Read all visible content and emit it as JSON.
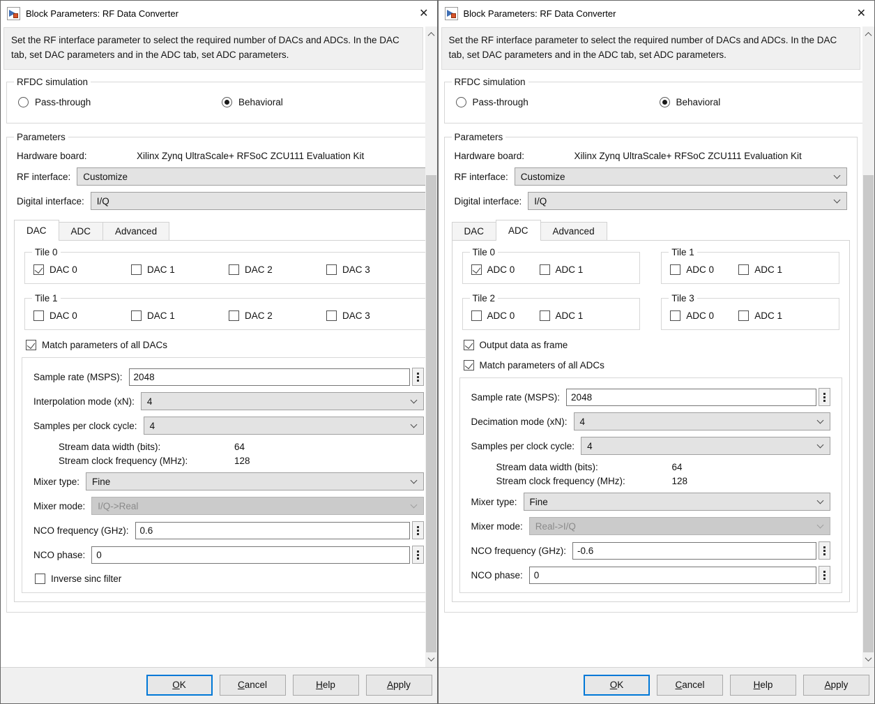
{
  "icons": {
    "close": "✕"
  },
  "window_title": "Block Parameters: RF Data Converter",
  "description": "Set the RF interface parameter to select the required number of DACs and ADCs. In the DAC tab, set DAC parameters and in the ADC tab, set ADC parameters.",
  "rfdc": {
    "legend": "RFDC simulation",
    "options": [
      {
        "label": "Pass-through",
        "selected": false
      },
      {
        "label": "Behavioral",
        "selected": true
      }
    ]
  },
  "parameters": {
    "legend": "Parameters",
    "hardware_board_label": "Hardware board:",
    "hardware_board_value": "Xilinx Zynq UltraScale+ RFSoC ZCU111 Evaluation Kit",
    "rf_interface_label": "RF interface:",
    "rf_interface_value": "Customize",
    "digital_interface_label": "Digital interface:",
    "digital_interface_value": "I/Q"
  },
  "tabs": {
    "dac": "DAC",
    "adc": "ADC",
    "advanced": "Advanced"
  },
  "left": {
    "active_tab": "DAC",
    "tiles": [
      {
        "name": "Tile 0",
        "items": [
          {
            "label": "DAC 0",
            "checked": true
          },
          {
            "label": "DAC 1",
            "checked": false
          },
          {
            "label": "DAC 2",
            "checked": false
          },
          {
            "label": "DAC 3",
            "checked": false
          }
        ]
      },
      {
        "name": "Tile 1",
        "items": [
          {
            "label": "DAC 0",
            "checked": false
          },
          {
            "label": "DAC 1",
            "checked": false
          },
          {
            "label": "DAC 2",
            "checked": false
          },
          {
            "label": "DAC 3",
            "checked": false
          }
        ]
      }
    ],
    "match": {
      "label": "Match parameters of all DACs",
      "checked": true
    },
    "sample_rate": {
      "label": "Sample rate (MSPS):",
      "value": "2048"
    },
    "mode": {
      "label": "Interpolation mode (xN):",
      "value": "4"
    },
    "spc": {
      "label": "Samples per clock cycle:",
      "value": "4"
    },
    "stream_width": {
      "label": "Stream data width (bits):",
      "value": "64"
    },
    "stream_clock": {
      "label": "Stream clock frequency (MHz):",
      "value": "128"
    },
    "mixer_type": {
      "label": "Mixer type:",
      "value": "Fine"
    },
    "mixer_mode": {
      "label": "Mixer mode:",
      "value": "I/Q->Real",
      "disabled": true
    },
    "nco_freq": {
      "label": "NCO frequency (GHz):",
      "value": "0.6"
    },
    "nco_phase": {
      "label": "NCO phase:",
      "value": "0"
    },
    "inverse_sinc": {
      "label": "Inverse sinc filter",
      "checked": false
    }
  },
  "right": {
    "active_tab": "ADC",
    "tiles": [
      {
        "name": "Tile 0",
        "items": [
          {
            "label": "ADC 0",
            "checked": true
          },
          {
            "label": "ADC 1",
            "checked": false
          }
        ]
      },
      {
        "name": "Tile 1",
        "items": [
          {
            "label": "ADC 0",
            "checked": false
          },
          {
            "label": "ADC 1",
            "checked": false
          }
        ]
      },
      {
        "name": "Tile 2",
        "items": [
          {
            "label": "ADC 0",
            "checked": false
          },
          {
            "label": "ADC 1",
            "checked": false
          }
        ]
      },
      {
        "name": "Tile 3",
        "items": [
          {
            "label": "ADC 0",
            "checked": false
          },
          {
            "label": "ADC 1",
            "checked": false
          }
        ]
      }
    ],
    "output_frame": {
      "label": "Output data as frame",
      "checked": true
    },
    "match": {
      "label": "Match parameters of all ADCs",
      "checked": true
    },
    "sample_rate": {
      "label": "Sample rate (MSPS):",
      "value": "2048"
    },
    "mode": {
      "label": "Decimation mode (xN):",
      "value": "4"
    },
    "spc": {
      "label": "Samples per clock cycle:",
      "value": "4"
    },
    "stream_width": {
      "label": "Stream data width (bits):",
      "value": "64"
    },
    "stream_clock": {
      "label": "Stream clock frequency (MHz):",
      "value": "128"
    },
    "mixer_type": {
      "label": "Mixer type:",
      "value": "Fine"
    },
    "mixer_mode": {
      "label": "Mixer mode:",
      "value": "Real->I/Q",
      "disabled": true
    },
    "nco_freq": {
      "label": "NCO frequency (GHz):",
      "value": "-0.6"
    },
    "nco_phase": {
      "label": "NCO phase:",
      "value": "0"
    }
  },
  "buttons": {
    "ok": "OK",
    "cancel": "Cancel",
    "help": "Help",
    "apply": "Apply"
  }
}
